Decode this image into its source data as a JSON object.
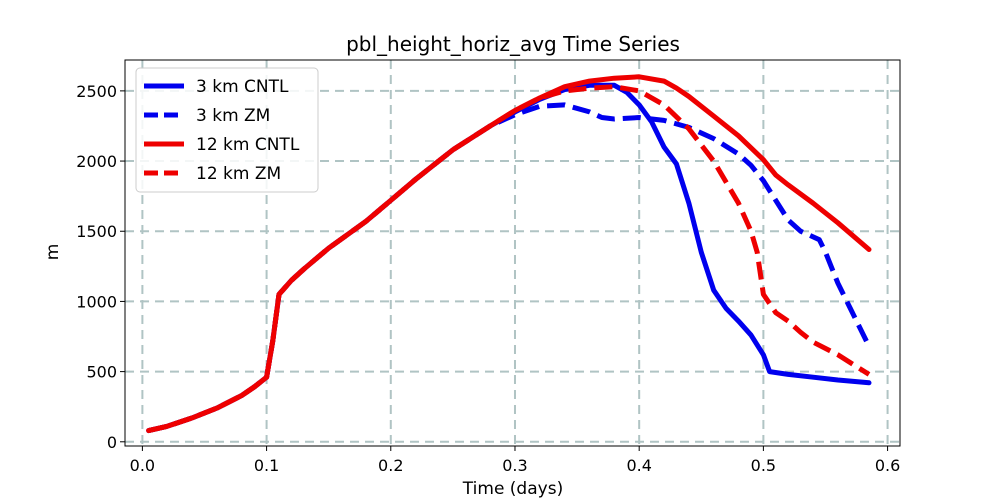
{
  "chart_data": {
    "type": "line",
    "title": "pbl_height_horiz_avg Time Series",
    "xlabel": "Time (days)",
    "ylabel": "m",
    "xlim": [
      -0.014,
      0.61
    ],
    "ylim": [
      -30,
      2720
    ],
    "xticks": [
      0.0,
      0.1,
      0.2,
      0.3,
      0.4,
      0.5,
      0.6
    ],
    "xtick_labels": [
      "0.0",
      "0.1",
      "0.2",
      "0.3",
      "0.4",
      "0.5",
      "0.6"
    ],
    "yticks": [
      0,
      500,
      1000,
      1500,
      2000,
      2500
    ],
    "ytick_labels": [
      "0",
      "500",
      "1000",
      "1500",
      "2000",
      "2500"
    ],
    "grid": true,
    "legend_position": "top-left",
    "series": [
      {
        "name": "3 km CNTL",
        "color": "#0000ee",
        "style": "solid",
        "x": [
          0.005,
          0.02,
          0.04,
          0.06,
          0.08,
          0.09,
          0.1,
          0.105,
          0.11,
          0.12,
          0.13,
          0.15,
          0.18,
          0.2,
          0.22,
          0.25,
          0.28,
          0.3,
          0.32,
          0.34,
          0.36,
          0.38,
          0.39,
          0.4,
          0.41,
          0.42,
          0.43,
          0.44,
          0.45,
          0.46,
          0.47,
          0.48,
          0.49,
          0.5,
          0.505,
          0.52,
          0.54,
          0.56,
          0.585
        ],
        "y": [
          80,
          110,
          170,
          240,
          330,
          390,
          460,
          720,
          1050,
          1150,
          1230,
          1380,
          1570,
          1720,
          1870,
          2080,
          2250,
          2350,
          2440,
          2510,
          2540,
          2540,
          2490,
          2400,
          2280,
          2100,
          1980,
          1700,
          1350,
          1080,
          950,
          860,
          760,
          620,
          500,
          480,
          460,
          440,
          420
        ]
      },
      {
        "name": "3 km ZM",
        "color": "#0000ee",
        "style": "dashed",
        "x": [
          0.005,
          0.02,
          0.04,
          0.06,
          0.08,
          0.09,
          0.1,
          0.105,
          0.11,
          0.12,
          0.13,
          0.15,
          0.18,
          0.2,
          0.22,
          0.25,
          0.28,
          0.3,
          0.32,
          0.34,
          0.36,
          0.37,
          0.38,
          0.4,
          0.42,
          0.44,
          0.46,
          0.48,
          0.49,
          0.5,
          0.51,
          0.52,
          0.53,
          0.545,
          0.55,
          0.56,
          0.57,
          0.585
        ],
        "y": [
          80,
          110,
          170,
          240,
          330,
          390,
          460,
          720,
          1050,
          1150,
          1230,
          1380,
          1570,
          1720,
          1870,
          2080,
          2250,
          2330,
          2390,
          2400,
          2350,
          2310,
          2300,
          2310,
          2290,
          2240,
          2160,
          2050,
          1970,
          1860,
          1720,
          1580,
          1500,
          1440,
          1350,
          1130,
          950,
          680
        ]
      },
      {
        "name": "12 km CNTL",
        "color": "#ee0000",
        "style": "solid",
        "x": [
          0.005,
          0.02,
          0.04,
          0.06,
          0.08,
          0.09,
          0.1,
          0.105,
          0.11,
          0.12,
          0.13,
          0.15,
          0.18,
          0.2,
          0.22,
          0.25,
          0.28,
          0.3,
          0.32,
          0.34,
          0.36,
          0.38,
          0.4,
          0.42,
          0.43,
          0.44,
          0.46,
          0.48,
          0.5,
          0.51,
          0.52,
          0.54,
          0.56,
          0.585
        ],
        "y": [
          80,
          110,
          170,
          240,
          330,
          390,
          460,
          720,
          1050,
          1150,
          1230,
          1380,
          1570,
          1720,
          1870,
          2080,
          2250,
          2360,
          2450,
          2530,
          2570,
          2590,
          2600,
          2570,
          2520,
          2460,
          2320,
          2180,
          2010,
          1900,
          1830,
          1700,
          1560,
          1370
        ]
      },
      {
        "name": "12 km ZM",
        "color": "#ee0000",
        "style": "dashed",
        "x": [
          0.005,
          0.02,
          0.04,
          0.06,
          0.08,
          0.09,
          0.1,
          0.105,
          0.11,
          0.12,
          0.13,
          0.15,
          0.18,
          0.2,
          0.22,
          0.25,
          0.28,
          0.3,
          0.32,
          0.34,
          0.36,
          0.38,
          0.4,
          0.42,
          0.44,
          0.46,
          0.48,
          0.49,
          0.495,
          0.5,
          0.51,
          0.52,
          0.53,
          0.54,
          0.56,
          0.585
        ],
        "y": [
          80,
          110,
          170,
          240,
          330,
          390,
          460,
          720,
          1050,
          1150,
          1230,
          1380,
          1570,
          1720,
          1870,
          2080,
          2250,
          2360,
          2450,
          2500,
          2520,
          2530,
          2500,
          2400,
          2230,
          2000,
          1700,
          1500,
          1350,
          1050,
          920,
          860,
          780,
          710,
          620,
          480
        ]
      }
    ]
  }
}
